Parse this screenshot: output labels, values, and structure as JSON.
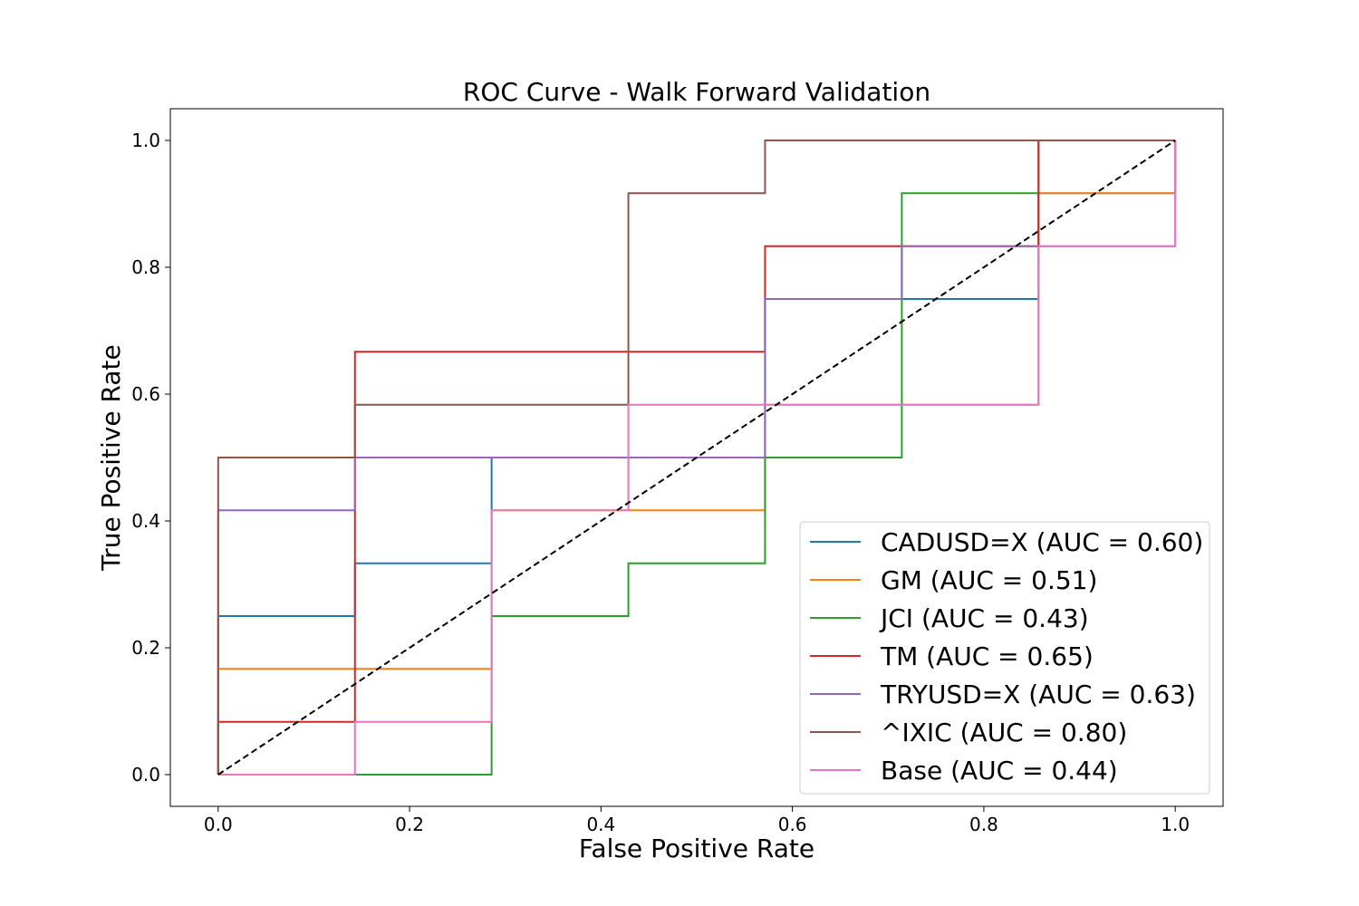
{
  "chart_data": {
    "type": "line",
    "title": "ROC Curve - Walk Forward Validation",
    "xlabel": "False Positive Rate",
    "ylabel": "True Positive Rate",
    "xlim": [
      -0.05,
      1.05
    ],
    "ylim": [
      -0.05,
      1.05
    ],
    "xticks": [
      0.0,
      0.2,
      0.4,
      0.6,
      0.8,
      1.0
    ],
    "yticks": [
      0.0,
      0.2,
      0.4,
      0.6,
      0.8,
      1.0
    ],
    "xtick_labels": [
      "0.0",
      "0.2",
      "0.4",
      "0.6",
      "0.8",
      "1.0"
    ],
    "ytick_labels": [
      "0.0",
      "0.2",
      "0.4",
      "0.6",
      "0.8",
      "1.0"
    ],
    "grid": false,
    "legend_position": "lower right",
    "diagonal": {
      "x": [
        0,
        1
      ],
      "y": [
        0,
        1
      ],
      "color": "#000000",
      "style": "dashed"
    },
    "series": [
      {
        "name": "CADUSD=X (AUC = 0.60)",
        "color": "#1f77b4",
        "x": [
          0,
          0,
          0.1429,
          0.1429,
          0.2857,
          0.2857,
          0.5714,
          0.5714,
          0.8571,
          0.8571,
          1,
          1
        ],
        "y": [
          0,
          0.25,
          0.25,
          0.3333,
          0.3333,
          0.5,
          0.5,
          0.75,
          0.75,
          0.9167,
          0.9167,
          1
        ]
      },
      {
        "name": "GM (AUC = 0.51)",
        "color": "#ff7f0e",
        "x": [
          0,
          0,
          0.2857,
          0.2857,
          0.4286,
          0.4286,
          0.5714,
          0.5714,
          0.8571,
          0.8571,
          1,
          1
        ],
        "y": [
          0,
          0.1667,
          0.1667,
          0.4167,
          0.4167,
          0.4167,
          0.4167,
          0.5833,
          0.5833,
          0.9167,
          0.9167,
          1
        ]
      },
      {
        "name": "JCI (AUC = 0.43)",
        "color": "#2ca02c",
        "x": [
          0,
          0.2857,
          0.2857,
          0.4286,
          0.4286,
          0.5714,
          0.5714,
          0.7143,
          0.7143,
          0.8571,
          0.8571,
          1
        ],
        "y": [
          0,
          0,
          0.25,
          0.25,
          0.3333,
          0.3333,
          0.5,
          0.5,
          0.9167,
          0.9167,
          1,
          1
        ]
      },
      {
        "name": "TM (AUC = 0.65)",
        "color": "#d62728",
        "x": [
          0,
          0,
          0.1429,
          0.1429,
          0.5714,
          0.5714,
          0.8571,
          0.8571,
          1,
          1
        ],
        "y": [
          0,
          0.0833,
          0.0833,
          0.6667,
          0.6667,
          0.8333,
          0.8333,
          1,
          1,
          1
        ]
      },
      {
        "name": "TRYUSD=X (AUC = 0.63)",
        "color": "#9467bd",
        "x": [
          0,
          0,
          0.1429,
          0.1429,
          0.4286,
          0.4286,
          0.5714,
          0.5714,
          0.7143,
          0.7143,
          0.8571,
          0.8571,
          1,
          1
        ],
        "y": [
          0,
          0.4167,
          0.4167,
          0.5,
          0.5,
          0.5,
          0.5,
          0.75,
          0.75,
          0.8333,
          0.8333,
          0.8333,
          0.8333,
          1
        ]
      },
      {
        "name": "^IXIC (AUC = 0.80)",
        "color": "#8c564b",
        "x": [
          0,
          0,
          0.1429,
          0.1429,
          0.4286,
          0.4286,
          0.5714,
          0.5714,
          1
        ],
        "y": [
          0,
          0.5,
          0.5,
          0.5833,
          0.5833,
          0.9167,
          0.9167,
          1,
          1
        ]
      },
      {
        "name": "Base (AUC = 0.44)",
        "color": "#e377c2",
        "x": [
          0,
          0.1429,
          0.1429,
          0.2857,
          0.2857,
          0.4286,
          0.4286,
          0.8571,
          0.8571,
          1,
          1
        ],
        "y": [
          0,
          0,
          0.0833,
          0.0833,
          0.4167,
          0.4167,
          0.5833,
          0.5833,
          0.8333,
          0.8333,
          1
        ]
      }
    ]
  }
}
